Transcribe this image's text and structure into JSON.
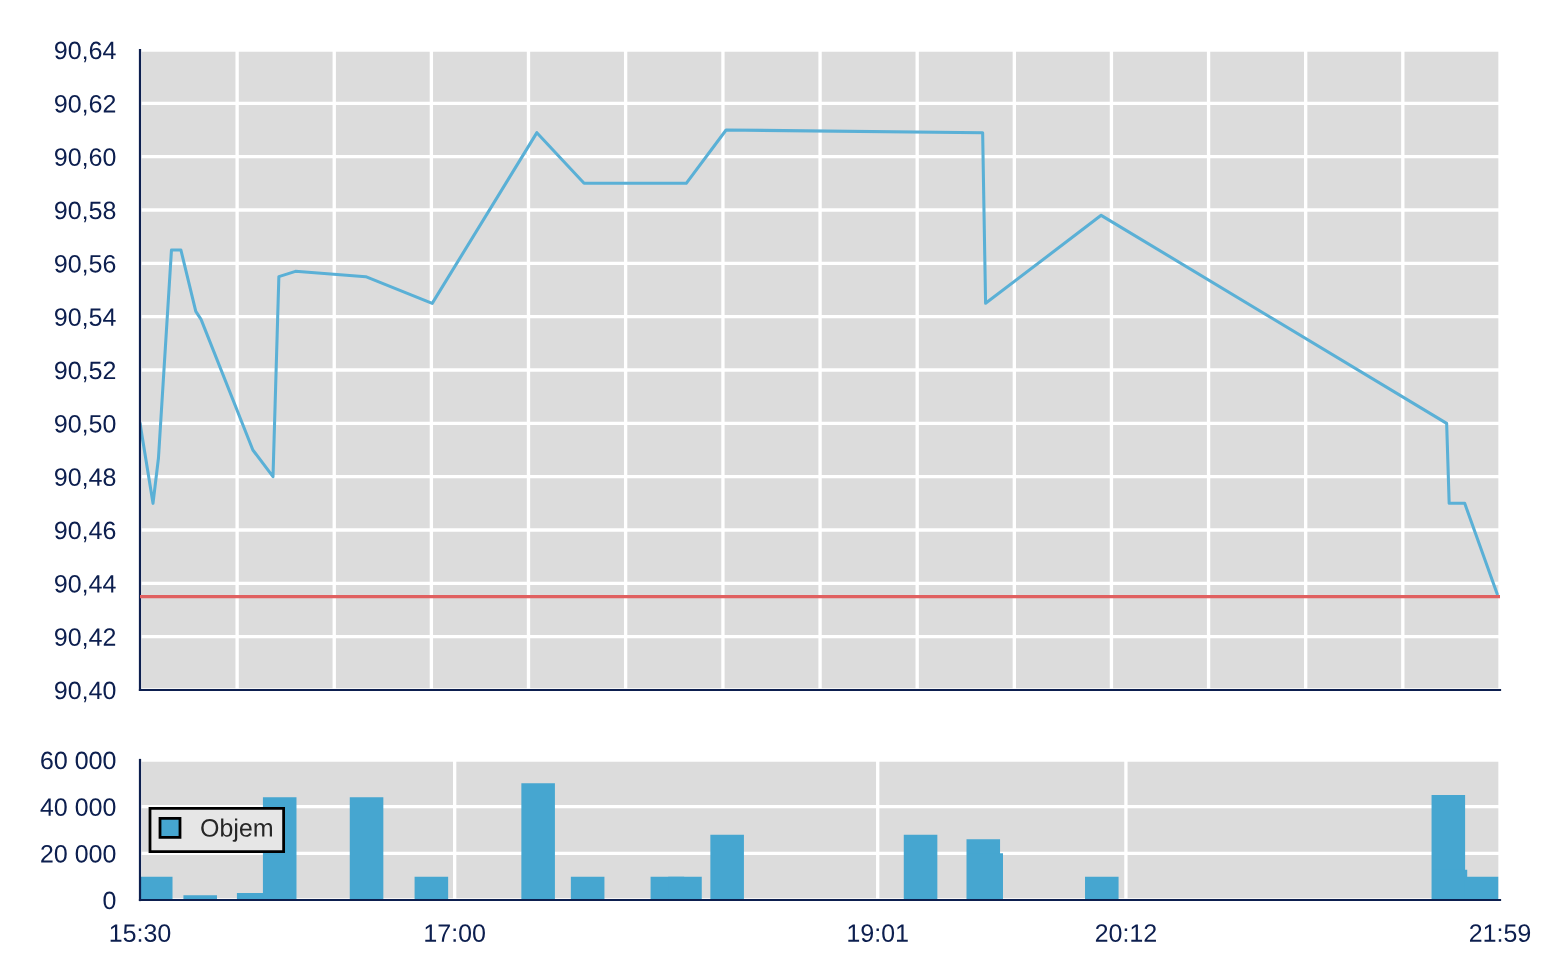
{
  "chart_data": [
    {
      "type": "line",
      "xlim": [
        15.5,
        21.9833
      ],
      "xticks": [
        {
          "value": 15.5,
          "label": null
        },
        {
          "value": 15.963,
          "label": null
        },
        {
          "value": 16.426,
          "label": null
        },
        {
          "value": 16.889,
          "label": null
        },
        {
          "value": 17.352,
          "label": null
        },
        {
          "value": 17.815,
          "label": null
        },
        {
          "value": 18.279,
          "label": null
        },
        {
          "value": 18.742,
          "label": null
        },
        {
          "value": 19.205,
          "label": null
        },
        {
          "value": 19.668,
          "label": null
        },
        {
          "value": 20.131,
          "label": null
        },
        {
          "value": 20.594,
          "label": null
        },
        {
          "value": 21.057,
          "label": null
        },
        {
          "value": 21.52,
          "label": null
        },
        {
          "value": 21.9833,
          "label": null
        }
      ],
      "ylim": [
        90.4,
        90.64
      ],
      "yticks": [
        {
          "value": 90.4,
          "label": "90,40"
        },
        {
          "value": 90.42,
          "label": "90,42"
        },
        {
          "value": 90.44,
          "label": "90,44"
        },
        {
          "value": 90.46,
          "label": "90,46"
        },
        {
          "value": 90.48,
          "label": "90,48"
        },
        {
          "value": 90.5,
          "label": "90,50"
        },
        {
          "value": 90.52,
          "label": "90,52"
        },
        {
          "value": 90.54,
          "label": "90,54"
        },
        {
          "value": 90.56,
          "label": "90,56"
        },
        {
          "value": 90.58,
          "label": "90,58"
        },
        {
          "value": 90.6,
          "label": "90,60"
        },
        {
          "value": 90.62,
          "label": "90,62"
        },
        {
          "value": 90.64,
          "label": "90,64"
        }
      ],
      "tick_labels": "y",
      "grid": true,
      "legend": false,
      "series": [
        {
          "color": "#5ab0d6",
          "x": [
            15.5,
            15.562,
            15.588,
            15.65,
            15.695,
            15.766,
            15.791,
            16.038,
            16.134,
            16.162,
            16.241,
            16.576,
            16.893,
            17.392,
            17.617,
            18.104,
            18.294,
            19.517,
            19.531,
            20.082,
            21.729,
            21.741,
            21.815,
            21.97
          ],
          "values": [
            90.5,
            90.47,
            90.487,
            90.565,
            90.565,
            90.542,
            90.539,
            90.49,
            90.48,
            90.555,
            90.557,
            90.555,
            90.545,
            90.609,
            90.59,
            90.59,
            90.61,
            90.609,
            90.545,
            90.578,
            90.5,
            90.47,
            90.47,
            90.436
          ]
        }
      ],
      "ref_lines": [
        {
          "axis": "y",
          "value": 90.435,
          "color": "#e06060"
        }
      ]
    },
    {
      "type": "bar",
      "xlim": [
        15.5,
        21.9833
      ],
      "xticks": [
        {
          "value": 15.5,
          "label": "15:30"
        },
        {
          "value": 17.0,
          "label": "17:00"
        },
        {
          "value": 19.0167,
          "label": "19:01"
        },
        {
          "value": 20.2,
          "label": "20:12"
        },
        {
          "value": 21.9833,
          "label": "21:59"
        }
      ],
      "ylim": [
        0,
        60000
      ],
      "yticks": [
        {
          "value": 0,
          "label": "0"
        },
        {
          "value": 20000,
          "label": "20 000"
        },
        {
          "value": 40000,
          "label": "40 000"
        },
        {
          "value": 60000,
          "label": "60 000"
        }
      ],
      "grid": true,
      "legend": "left",
      "series": [
        {
          "name": "Objem",
          "color": "#46a6d0",
          "x": [
            15.575,
            15.787,
            16.042,
            16.166,
            16.58,
            16.889,
            17.398,
            17.634,
            18.014,
            18.098,
            18.299,
            19.221,
            19.52,
            19.534,
            20.085,
            21.737,
            21.747,
            21.895
          ],
          "values": [
            10000,
            2000,
            3000,
            44000,
            44000,
            10000,
            50000,
            10000,
            10000,
            10000,
            28000,
            28000,
            26000,
            20000,
            10000,
            45000,
            13000,
            10000
          ]
        }
      ]
    }
  ]
}
